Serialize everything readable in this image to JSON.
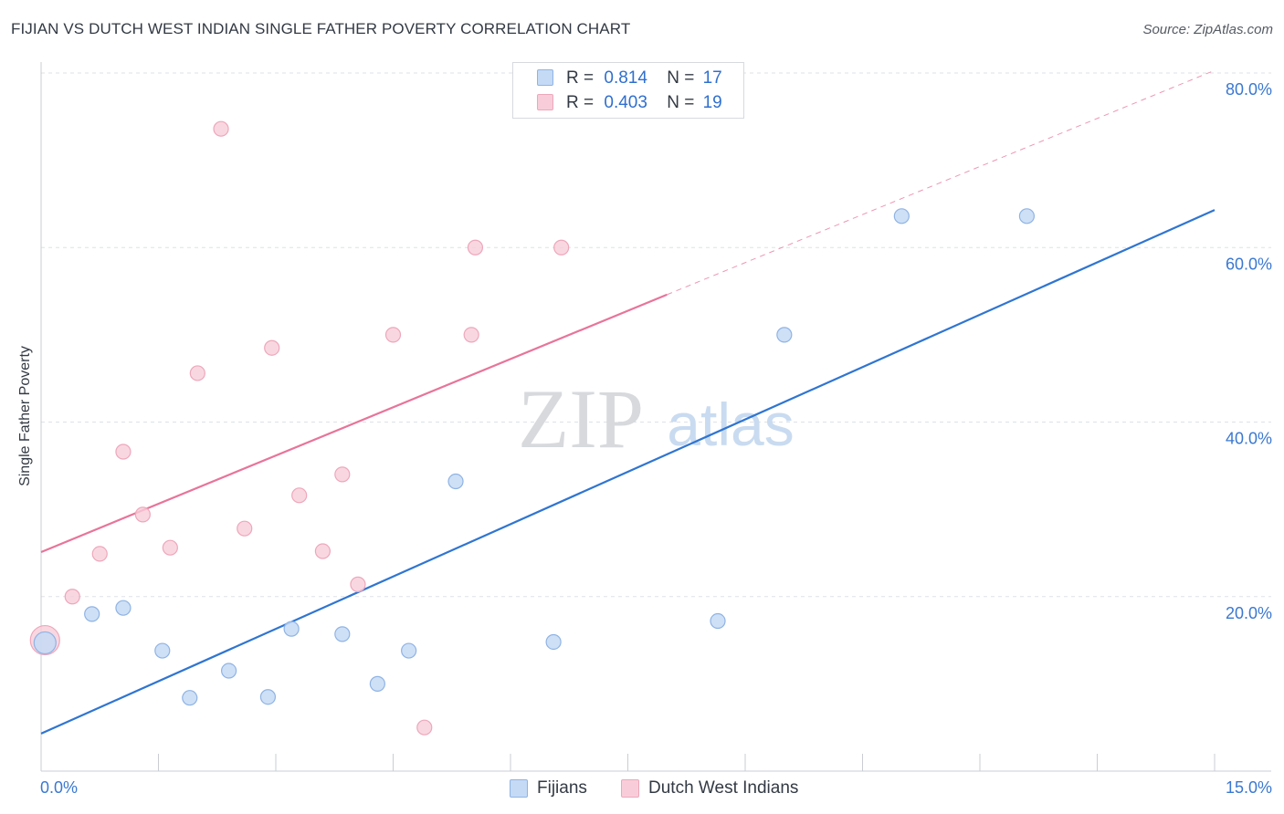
{
  "title": "FIJIAN VS DUTCH WEST INDIAN SINGLE FATHER POVERTY CORRELATION CHART",
  "source": "Source: ZipAtlas.com",
  "watermark": {
    "zip": "ZIP",
    "atlas": "atlas"
  },
  "legend_top": [
    {
      "r_label": "R =",
      "r_value": "0.814",
      "n_label": "N =",
      "n_value": "17"
    },
    {
      "r_label": "R =",
      "r_value": "0.403",
      "n_label": "N =",
      "n_value": "19"
    }
  ],
  "legend_bottom": [
    "Fijians",
    "Dutch West Indians"
  ],
  "colors": {
    "blue_fill": "#c5daf5",
    "blue_stroke": "#8fb3e4",
    "blue_line": "#2f75d1",
    "pink_fill": "#f8cdd9",
    "pink_stroke": "#eda7bb",
    "pink_line": "#e8749a",
    "axis_text": "#3a78d1",
    "grid": "#dde1e6"
  },
  "chart_data": {
    "type": "scatter",
    "title": "FIJIAN VS DUTCH WEST INDIAN SINGLE FATHER POVERTY CORRELATION CHART",
    "xlabel": "",
    "ylabel": "Single Father Poverty",
    "xlim": [
      0,
      15
    ],
    "ylim": [
      0,
      80
    ],
    "x_tick_labels": [
      "0.0%",
      "15.0%"
    ],
    "y_ticks": [
      20,
      40,
      60,
      80
    ],
    "y_tick_labels": [
      "20.0%",
      "40.0%",
      "60.0%",
      "80.0%"
    ],
    "grid": true,
    "series": [
      {
        "name": "Fijians",
        "r": 0.814,
        "n": 17,
        "points": [
          {
            "x": 0.05,
            "y": 14.7
          },
          {
            "x": 0.65,
            "y": 18.0
          },
          {
            "x": 1.05,
            "y": 18.7
          },
          {
            "x": 1.55,
            "y": 13.8
          },
          {
            "x": 1.9,
            "y": 8.4
          },
          {
            "x": 2.4,
            "y": 11.5
          },
          {
            "x": 2.9,
            "y": 8.5
          },
          {
            "x": 3.2,
            "y": 16.3
          },
          {
            "x": 3.85,
            "y": 15.7
          },
          {
            "x": 4.3,
            "y": 10.0
          },
          {
            "x": 4.7,
            "y": 13.8
          },
          {
            "x": 5.3,
            "y": 33.2
          },
          {
            "x": 6.55,
            "y": 14.8
          },
          {
            "x": 8.65,
            "y": 17.2
          },
          {
            "x": 9.5,
            "y": 50.0
          },
          {
            "x": 11.0,
            "y": 63.6
          },
          {
            "x": 12.6,
            "y": 63.6
          }
        ],
        "trend": {
          "x0": 0,
          "y0": 4.3,
          "x1": 15,
          "y1": 64.3,
          "style": "solid"
        }
      },
      {
        "name": "Dutch West Indians",
        "r": 0.403,
        "n": 19,
        "points": [
          {
            "x": 0.05,
            "y": 15.0
          },
          {
            "x": 0.4,
            "y": 20.0
          },
          {
            "x": 0.75,
            "y": 24.9
          },
          {
            "x": 1.05,
            "y": 36.6
          },
          {
            "x": 1.3,
            "y": 29.4
          },
          {
            "x": 1.65,
            "y": 25.6
          },
          {
            "x": 2.0,
            "y": 45.6
          },
          {
            "x": 2.3,
            "y": 73.6
          },
          {
            "x": 2.6,
            "y": 27.8
          },
          {
            "x": 2.95,
            "y": 48.5
          },
          {
            "x": 3.3,
            "y": 31.6
          },
          {
            "x": 3.6,
            "y": 25.2
          },
          {
            "x": 3.85,
            "y": 34.0
          },
          {
            "x": 4.05,
            "y": 21.4
          },
          {
            "x": 4.5,
            "y": 50.0
          },
          {
            "x": 4.9,
            "y": 5.0
          },
          {
            "x": 5.5,
            "y": 50.0
          },
          {
            "x": 5.55,
            "y": 60.0
          },
          {
            "x": 6.65,
            "y": 60.0
          }
        ],
        "trend": {
          "x0": 0,
          "y0": 25.1,
          "x1": 8.0,
          "y1": 54.6,
          "x_dash_end": 15,
          "y_dash_end": 80.3,
          "style": "solid+dashed"
        }
      }
    ]
  }
}
